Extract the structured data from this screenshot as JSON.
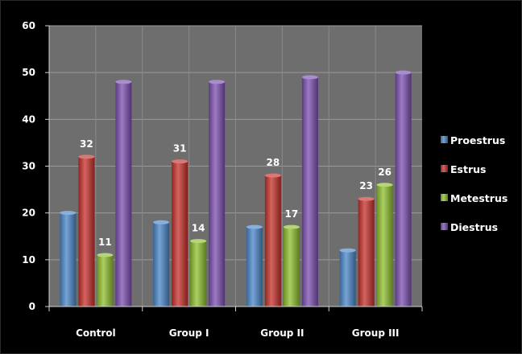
{
  "chart_data": {
    "type": "bar",
    "categories": [
      "Control",
      "Group I",
      "Group II",
      "Group III"
    ],
    "series": [
      {
        "name": "Proestrus",
        "values": [
          20,
          18,
          17,
          12
        ],
        "color": "#4a86c8",
        "show_labels": false
      },
      {
        "name": "Estrus",
        "values": [
          32,
          31,
          28,
          23
        ],
        "color": "#c6302b",
        "show_labels": true
      },
      {
        "name": "Metestrus",
        "values": [
          11,
          14,
          17,
          26
        ],
        "color": "#8fbf2f",
        "show_labels": true
      },
      {
        "name": "Diestrus",
        "values": [
          48,
          48,
          49,
          50
        ],
        "color": "#7b4fb0",
        "show_labels": false
      }
    ],
    "ylim": [
      0,
      60
    ],
    "yticks": [
      0,
      10,
      20,
      30,
      40,
      50,
      60
    ],
    "grid": true,
    "legend": "right",
    "title": "",
    "xlabel": "",
    "ylabel": "",
    "plot_background": "#6e6e6e",
    "page_background": "#000000"
  }
}
